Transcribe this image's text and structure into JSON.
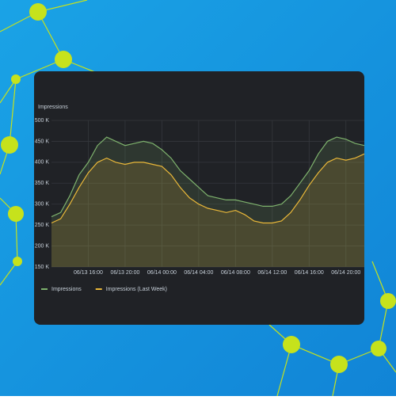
{
  "chart_data": {
    "type": "area",
    "title": "Impressions",
    "categories": [
      null,
      null,
      null,
      null,
      "06/13 16:00",
      null,
      null,
      null,
      "06/13 20:00",
      null,
      null,
      null,
      "06/14 00:00",
      null,
      null,
      null,
      "06/14 04:00",
      null,
      null,
      null,
      "06/14 08:00",
      null,
      null,
      null,
      "06/14 12:00",
      null,
      null,
      null,
      "06/14 16:00",
      null,
      null,
      null,
      "06/14 20:00",
      null,
      null
    ],
    "series": [
      {
        "name": "Impressions",
        "color": "#7eb26d",
        "values": [
          270000,
          280000,
          320000,
          370000,
          400000,
          440000,
          460000,
          450000,
          440000,
          445000,
          450000,
          445000,
          430000,
          410000,
          380000,
          360000,
          340000,
          320000,
          315000,
          310000,
          310000,
          305000,
          300000,
          295000,
          295000,
          300000,
          320000,
          350000,
          380000,
          420000,
          450000,
          460000,
          455000,
          445000,
          440000
        ]
      },
      {
        "name": "Impressions (Last Week)",
        "color": "#eab839",
        "values": [
          255000,
          265000,
          300000,
          340000,
          375000,
          400000,
          410000,
          400000,
          395000,
          400000,
          400000,
          395000,
          390000,
          370000,
          340000,
          315000,
          300000,
          290000,
          285000,
          280000,
          285000,
          275000,
          260000,
          255000,
          255000,
          260000,
          280000,
          310000,
          345000,
          375000,
          400000,
          410000,
          405000,
          410000,
          420000
        ]
      }
    ],
    "ylim": [
      150000,
      500000
    ],
    "yticks": [
      {
        "value": 150000,
        "label": "150 K"
      },
      {
        "value": 200000,
        "label": "200 K"
      },
      {
        "value": 250000,
        "label": "250 K"
      },
      {
        "value": 300000,
        "label": "300 K"
      },
      {
        "value": 350000,
        "label": "350 K"
      },
      {
        "value": 400000,
        "label": "400 K"
      },
      {
        "value": 450000,
        "label": "450 K"
      },
      {
        "value": 500000,
        "label": "500 K"
      }
    ],
    "grid": true
  }
}
